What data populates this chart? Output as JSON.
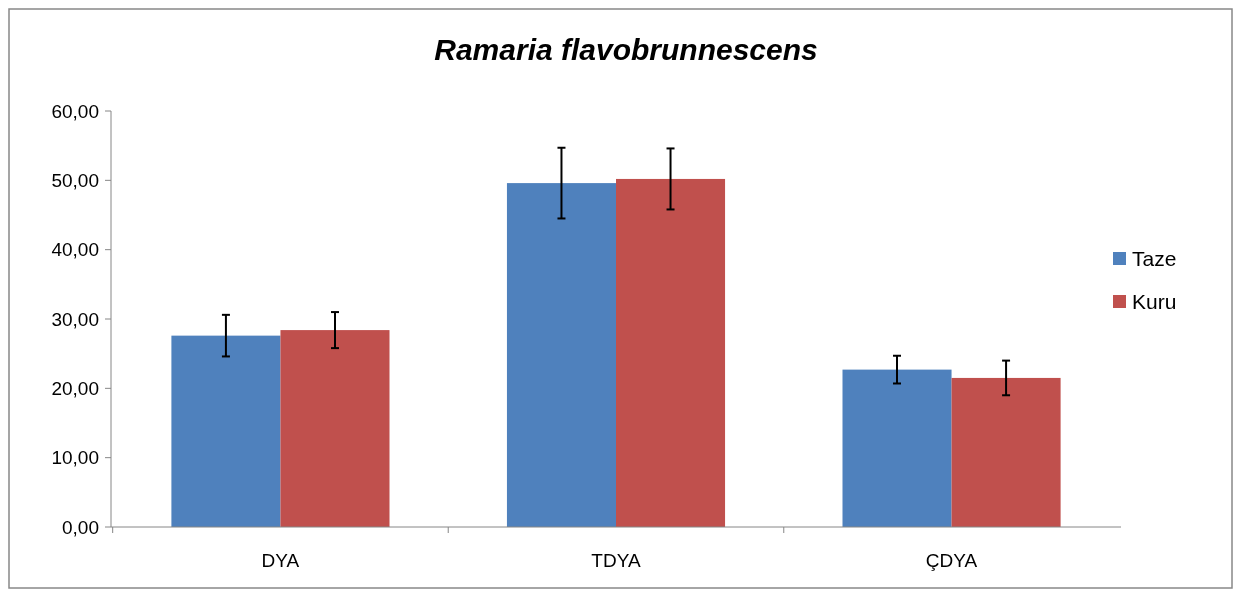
{
  "chart_data": {
    "type": "bar",
    "title": "Ramaria flavobrunnescens",
    "categories": [
      "DYA",
      "TDYA",
      "ÇDYA"
    ],
    "series": [
      {
        "name": "Taze",
        "color": "#4f81bd",
        "values": [
          27.6,
          49.6,
          22.7
        ],
        "errors": [
          3.0,
          5.1,
          2.0
        ]
      },
      {
        "name": "Kuru",
        "color": "#c0504d",
        "values": [
          28.4,
          50.2,
          21.5
        ],
        "errors": [
          2.6,
          4.4,
          2.5
        ]
      }
    ],
    "ylim": [
      0,
      60
    ],
    "yticks": [
      {
        "value": 0,
        "label": "0,00"
      },
      {
        "value": 10,
        "label": "10,00"
      },
      {
        "value": 20,
        "label": "20,00"
      },
      {
        "value": 30,
        "label": "30,00"
      },
      {
        "value": 40,
        "label": "40,00"
      },
      {
        "value": 50,
        "label": "50,00"
      },
      {
        "value": 60,
        "label": "60,00"
      }
    ],
    "legend": "right"
  }
}
